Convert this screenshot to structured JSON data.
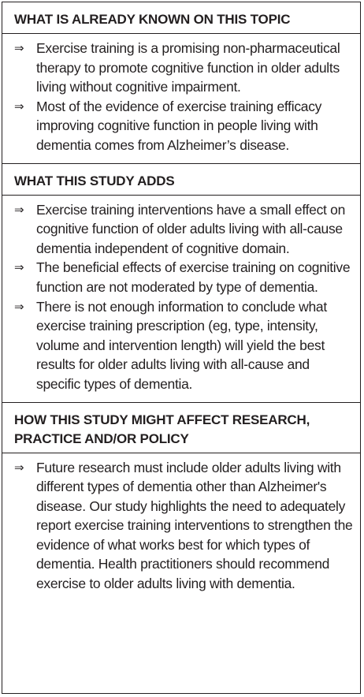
{
  "sections": [
    {
      "heading": "WHAT IS ALREADY KNOWN ON THIS TOPIC",
      "items": [
        "Exercise training is a promising non-pharmaceutical therapy to promote cognitive function in older adults living without cognitive impairment.",
        "Most of the evidence of exercise training efficacy improving cognitive function in people living with dementia comes from Alzheimer’s disease."
      ]
    },
    {
      "heading": "WHAT THIS STUDY ADDS",
      "items": [
        "Exercise training interventions have a small effect on cognitive function of older adults living with all-cause dementia independent of cognitive domain.",
        "The beneficial effects of exercise training on cognitive function are not moderated by type of dementia.",
        "There is not enough information to conclude what exercise training prescription (eg, type, intensity, volume and intervention length) will yield the best results for older adults living with all-cause and specific types of dementia."
      ]
    },
    {
      "heading": "HOW THIS STUDY MIGHT AFFECT RESEARCH, PRACTICE AND/OR POLICY",
      "items": [
        "Future research must include older adults living with different types of dementia other than Alzheimer's disease. Our study highlights the need to adequately report exercise training interventions to strengthen the evidence of what works best for which types of dementia. Health practitioners should recommend exercise to older adults living with dementia."
      ]
    }
  ]
}
